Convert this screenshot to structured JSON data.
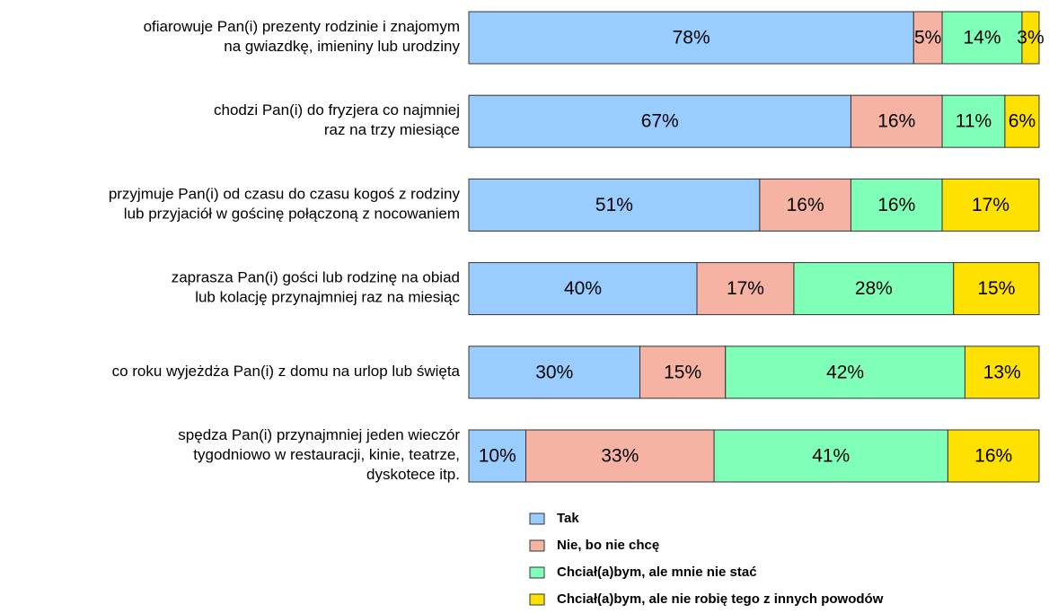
{
  "chart_data": {
    "type": "stacked-barh",
    "categories": [
      "ofiarowuje Pan(i) prezenty rodzinie i znajomym\nna gwiazdkę, imieniny lub urodziny",
      "chodzi Pan(i) do fryzjera co najmniej\nraz na trzy miesiące",
      "przyjmuje Pan(i) od czasu do czasu kogoś z rodziny\nlub przyjaciół w gościnę połączoną z nocowaniem",
      "zaprasza Pan(i) gości lub rodzinę na obiad\nlub kolację przynajmniej raz na miesiąc",
      "co roku wyjeżdża Pan(i) z domu na urlop lub święta",
      "spędza Pan(i) przynajmniej jeden wieczór\ntygodniowo w restauracji, kinie, teatrze,\ndyskotece itp."
    ],
    "series": [
      {
        "name": "Tak",
        "color": "#99ccff",
        "values": [
          78,
          67,
          51,
          40,
          30,
          10
        ],
        "value_labels": [
          "78%",
          "67%",
          "51%",
          "40%",
          "30%",
          "10%"
        ]
      },
      {
        "name": "Nie, bo nie chcę",
        "color": "#f6b3a4",
        "values": [
          5,
          16,
          16,
          17,
          15,
          33
        ],
        "value_labels": [
          "5%",
          "16%",
          "16%",
          "17%",
          "15%",
          "33%"
        ]
      },
      {
        "name": "Chciał(a)bym, ale mnie nie stać",
        "color": "#80ffb8",
        "values": [
          14,
          11,
          16,
          28,
          42,
          41
        ],
        "value_labels": [
          "14%",
          "11%",
          "16%",
          "28%",
          "42%",
          "41%"
        ]
      },
      {
        "name": "Chciał(a)bym, ale nie robię tego z innych powodów",
        "color": "#ffe100",
        "values": [
          3,
          6,
          17,
          15,
          13,
          16
        ],
        "value_labels": [
          "3%",
          "6%",
          "17%",
          "15%",
          "13%",
          "16%"
        ]
      }
    ],
    "xlim": [
      0,
      100
    ]
  }
}
